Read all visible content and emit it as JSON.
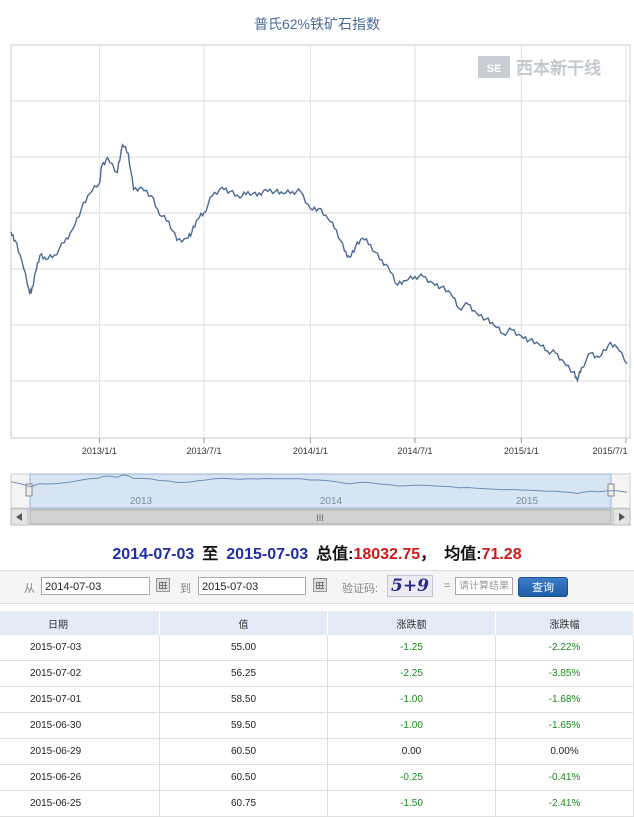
{
  "chart": {
    "title": "普氏62%铁矿石指数",
    "watermark_text": "西本新干线",
    "x_tick_labels": [
      "2013/1/1",
      "2013/7/1",
      "2014/1/1",
      "2014/7/1",
      "2015/1/1",
      "2015/7/1"
    ],
    "navigator_years": [
      "2013",
      "2014",
      "2015"
    ],
    "scrollbar_grip": "III",
    "line_color": "#4a6a94"
  },
  "chart_data": {
    "type": "line",
    "title": "普氏62%铁矿石指数",
    "series": [
      {
        "x": [
          "2012-08-01",
          "2012-08-08",
          "2012-08-20",
          "2012-09-01",
          "2012-09-05",
          "2012-09-12",
          "2012-09-20",
          "2012-10-01",
          "2012-10-15",
          "2012-11-01",
          "2012-11-15",
          "2012-12-01",
          "2012-12-15",
          "2013-01-01",
          "2013-01-05",
          "2013-01-15",
          "2013-02-01",
          "2013-02-10",
          "2013-02-20",
          "2013-03-01",
          "2013-03-15",
          "2013-04-01",
          "2013-04-15",
          "2013-05-01",
          "2013-05-15",
          "2013-06-01",
          "2013-06-10",
          "2013-06-20",
          "2013-07-01",
          "2013-07-15",
          "2013-08-01",
          "2013-08-15",
          "2013-09-01",
          "2013-09-15",
          "2013-10-01",
          "2013-10-15",
          "2013-11-01",
          "2013-11-15",
          "2013-12-01",
          "2013-12-15",
          "2014-01-01",
          "2014-01-15",
          "2014-02-01",
          "2014-02-15",
          "2014-03-01",
          "2014-03-10",
          "2014-03-20",
          "2014-04-01",
          "2014-04-15",
          "2014-05-01",
          "2014-05-15",
          "2014-06-01",
          "2014-06-15",
          "2014-07-01",
          "2014-07-15",
          "2014-08-01",
          "2014-08-15",
          "2014-09-01",
          "2014-09-15",
          "2014-10-01",
          "2014-10-15",
          "2014-11-01",
          "2014-11-15",
          "2014-12-01",
          "2014-12-15",
          "2015-01-01",
          "2015-01-15",
          "2015-02-01",
          "2015-02-15",
          "2015-03-01",
          "2015-03-15",
          "2015-04-01",
          "2015-04-08",
          "2015-04-15",
          "2015-05-01",
          "2015-05-15",
          "2015-06-01",
          "2015-06-15",
          "2015-07-03"
        ],
        "values": [
          117,
          113,
          103,
          90,
          88,
          98,
          106,
          104,
          106,
          112,
          118,
          128,
          135,
          140,
          148,
          152,
          145,
          158,
          154,
          137,
          138,
          134,
          125,
          122,
          113,
          114,
          117,
          123,
          126,
          134,
          138,
          136,
          133,
          136,
          134,
          137,
          136,
          135,
          136,
          136,
          128,
          128,
          123,
          118,
          108,
          105,
          110,
          114,
          111,
          104,
          101,
          92,
          94,
          96,
          96,
          93,
          91,
          88,
          81,
          83,
          79,
          76,
          73,
          69,
          71,
          68,
          66,
          64,
          61,
          60,
          56,
          51,
          47,
          53,
          60,
          58,
          64,
          63,
          55
        ]
      }
    ],
    "x_axis_ticks": [
      "2013/1/1",
      "2013/7/1",
      "2014/1/1",
      "2014/7/1",
      "2015/1/1",
      "2015/7/1"
    ],
    "grid": true,
    "ylim": [
      20,
      205
    ]
  },
  "summary": {
    "start_date": "2014-07-03",
    "to_word": "至",
    "end_date": "2015-07-03",
    "total_label": "总值:",
    "total_value": "18032.75",
    "sep": "，",
    "avg_label": "均值:",
    "avg_value": "71.28"
  },
  "filter": {
    "from_label": "从",
    "from_value": "2014-07-03",
    "to_label": "到",
    "to_value": "2015-07-03",
    "captcha_label": "验证码:",
    "captcha_text": "5+9",
    "equals": "=",
    "answer_placeholder": "请计算结果",
    "query_button": "查询"
  },
  "table": {
    "headers": [
      "日期",
      "值",
      "涨跌额",
      "涨跌幅"
    ],
    "rows": [
      [
        "2015-07-03",
        "55.00",
        "-1.25",
        "-2.22%"
      ],
      [
        "2015-07-02",
        "56.25",
        "-2.25",
        "-3.85%"
      ],
      [
        "2015-07-01",
        "58.50",
        "-1.00",
        "-1.68%"
      ],
      [
        "2015-06-30",
        "59.50",
        "-1.00",
        "-1.65%"
      ],
      [
        "2015-06-29",
        "60.50",
        "0.00",
        "0.00%"
      ],
      [
        "2015-06-26",
        "60.50",
        "-0.25",
        "-0.41%"
      ],
      [
        "2015-06-25",
        "60.75",
        "-1.50",
        "-2.41%"
      ]
    ]
  }
}
